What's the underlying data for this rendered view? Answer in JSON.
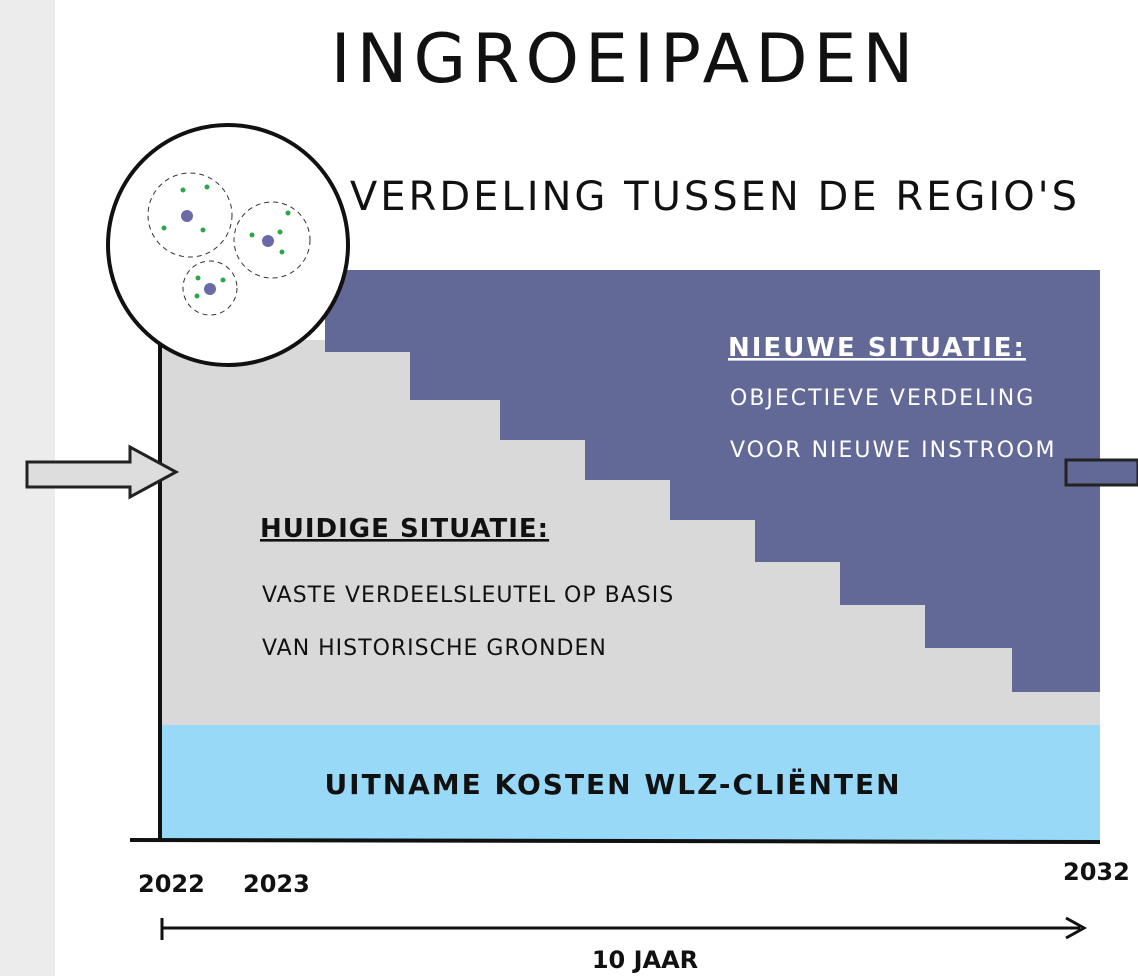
{
  "header": {
    "title": "INGROEIPADEN",
    "subtitle": "VERDELING TUSSEN DE REGIO'S"
  },
  "new_situation": {
    "heading": "NIEUWE SITUATIE:",
    "lines": [
      "OBJECTIEVE VERDELING",
      "VOOR NIEUWE INSTROOM"
    ]
  },
  "current_situation": {
    "heading": "HUIDIGE SITUATIE:",
    "lines": [
      "VASTE VERDEELSLEUTEL OP BASIS",
      "VAN HISTORISCHE GRONDEN"
    ]
  },
  "base_band": {
    "label": "UITNAME KOSTEN  WLZ-CLIËNTEN"
  },
  "timeline": {
    "years": [
      "2022",
      "2023",
      "2032"
    ],
    "span": "10 JAAR"
  }
}
